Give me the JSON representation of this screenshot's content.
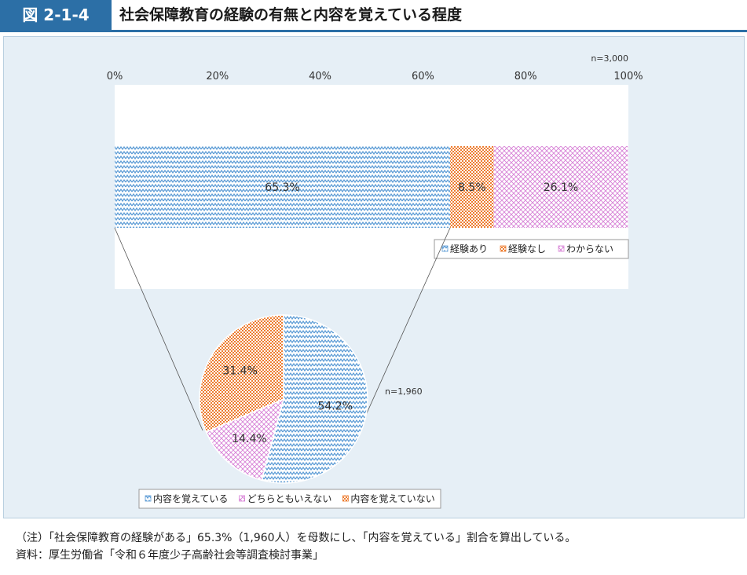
{
  "figure": {
    "label": "図 2-1-4",
    "title": "社会保障教育の経験の有無と内容を覚えている程度"
  },
  "chart_data": [
    {
      "type": "bar",
      "orientation": "horizontal-stacked",
      "sample_note": "n=3,000",
      "x_ticks": [
        "0%",
        "20%",
        "40%",
        "60%",
        "80%",
        "100%"
      ],
      "xlim": [
        0,
        100
      ],
      "series": [
        {
          "name": "経験あり",
          "value": 65.3,
          "label": "65.3%",
          "color": "#5b9bd5"
        },
        {
          "name": "経験なし",
          "value": 8.5,
          "label": "8.5%",
          "color": "#ed7d31"
        },
        {
          "name": "わからない",
          "value": 26.1,
          "label": "26.1%",
          "color": "#d77fd6"
        }
      ],
      "legend_position": "bottom-right"
    },
    {
      "type": "pie",
      "sample_note": "n=1,960",
      "series": [
        {
          "name": "内容を覚えている",
          "value": 54.2,
          "label": "54.2%",
          "color": "#5b9bd5"
        },
        {
          "name": "どちらともいえない",
          "value": 14.4,
          "label": "14.4%",
          "color": "#d77fd6"
        },
        {
          "name": "内容を覚えていない",
          "value": 31.4,
          "label": "31.4%",
          "color": "#ed7d31"
        }
      ],
      "legend_position": "bottom"
    }
  ],
  "notes": {
    "note": "（注）「社会保障教育の経験がある」65.3%（1,960人）を母数にし、「内容を覚えている」割合を算出している。",
    "source": "資料：厚生労働省「令和６年度少子高齢社会等調査検討事業」"
  },
  "icons": {
    "legend_marker": "diamond-swatch-icon"
  }
}
